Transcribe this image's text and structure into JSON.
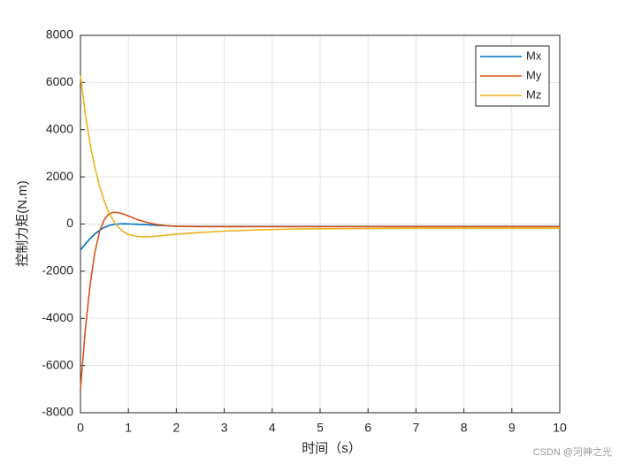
{
  "chart_data": {
    "type": "line",
    "ylabel": "控制力矩(N.m)",
    "xlabel": "时间（s）",
    "x": [
      0,
      0.1,
      0.2,
      0.3,
      0.4,
      0.5,
      0.6,
      0.7,
      0.8,
      0.9,
      1.0,
      1.2,
      1.4,
      1.6,
      1.8,
      2.0,
      2.5,
      3,
      3.5,
      4,
      4.5,
      5,
      6,
      7,
      8,
      9,
      10
    ],
    "series": [
      {
        "name": "Mx",
        "color": "#0072BD",
        "values": [
          -1100,
          -850,
          -620,
          -420,
          -260,
          -140,
          -60,
          -15,
          5,
          10,
          5,
          -10,
          -30,
          -55,
          -75,
          -90,
          -100,
          -100,
          -100,
          -100,
          -100,
          -100,
          -100,
          -100,
          -100,
          -100,
          -100
        ]
      },
      {
        "name": "My",
        "color": "#D95319",
        "values": [
          -7000,
          -4500,
          -2600,
          -1200,
          -300,
          200,
          440,
          500,
          480,
          420,
          340,
          180,
          60,
          -20,
          -70,
          -95,
          -110,
          -110,
          -110,
          -110,
          -110,
          -110,
          -110,
          -110,
          -110,
          -110,
          -110
        ]
      },
      {
        "name": "Mz",
        "color": "#EDB120",
        "values": [
          6300,
          4700,
          3400,
          2400,
          1600,
          950,
          450,
          100,
          -150,
          -330,
          -440,
          -530,
          -540,
          -510,
          -470,
          -430,
          -360,
          -300,
          -260,
          -230,
          -210,
          -200,
          -190,
          -180,
          -180,
          -180,
          -180
        ]
      }
    ],
    "xlim": [
      0,
      10
    ],
    "xticks": [
      0,
      1,
      2,
      3,
      4,
      5,
      6,
      7,
      8,
      9,
      10
    ],
    "ylim": [
      -8000,
      8000
    ],
    "yticks": [
      -8000,
      -6000,
      -4000,
      -2000,
      0,
      2000,
      4000,
      6000,
      8000
    ],
    "grid": true,
    "legend": "top-right"
  },
  "watermark": "CSDN @河神之光"
}
